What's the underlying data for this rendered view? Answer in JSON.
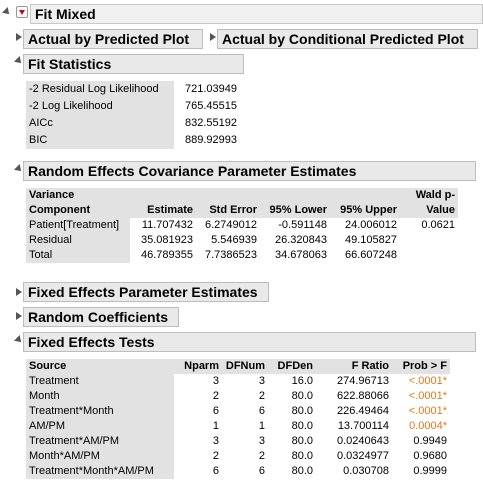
{
  "title": "Fit Mixed",
  "actual_by_predicted": "Actual by Predicted Plot",
  "actual_by_conditional": "Actual by Conditional Predicted Plot",
  "fit_statistics": {
    "title": "Fit Statistics",
    "rows": [
      {
        "label": "-2 Residual Log Likelihood",
        "value": "721.03949"
      },
      {
        "label": "-2 Log Likelihood",
        "value": "765.45515"
      },
      {
        "label": "AICc",
        "value": "832.55192"
      },
      {
        "label": "BIC",
        "value": "889.92993"
      }
    ]
  },
  "random_effects": {
    "title": "Random Effects Covariance Parameter Estimates",
    "headers": {
      "component_line1": "Variance",
      "component_line2": "Component",
      "estimate": "Estimate",
      "std_error": "Std Error",
      "lower": "95% Lower",
      "upper": "95% Upper",
      "wald_line1": "Wald p-",
      "wald_line2": "Value"
    },
    "rows": [
      {
        "component": "Patient[Treatment]",
        "estimate": "11.707432",
        "std_error": "6.2749012",
        "lower": "-0.591148",
        "upper": "24.006012",
        "wald": "0.0621"
      },
      {
        "component": "Residual",
        "estimate": "35.081923",
        "std_error": "5.546939",
        "lower": "26.320843",
        "upper": "49.105827",
        "wald": ""
      },
      {
        "component": "Total",
        "estimate": "46.789355",
        "std_error": "7.7386523",
        "lower": "34.678063",
        "upper": "66.607248",
        "wald": ""
      }
    ]
  },
  "fixed_effects_params": "Fixed Effects Parameter Estimates",
  "random_coefficients": "Random Coefficients",
  "fixed_effects_tests": {
    "title": "Fixed Effects Tests",
    "headers": {
      "source": "Source",
      "nparm": "Nparm",
      "dfnum": "DFNum",
      "dfden": "DFDen",
      "fratio": "F Ratio",
      "prob": "Prob > F"
    },
    "rows": [
      {
        "source": "Treatment",
        "nparm": "3",
        "dfnum": "3",
        "dfden": "16.0",
        "fratio": "274.96713",
        "prob": "<.0001*",
        "sig": true
      },
      {
        "source": "Month",
        "nparm": "2",
        "dfnum": "2",
        "dfden": "80.0",
        "fratio": "622.88066",
        "prob": "<.0001*",
        "sig": true
      },
      {
        "source": "Treatment*Month",
        "nparm": "6",
        "dfnum": "6",
        "dfden": "80.0",
        "fratio": "226.49464",
        "prob": "<.0001*",
        "sig": true
      },
      {
        "source": "AM/PM",
        "nparm": "1",
        "dfnum": "1",
        "dfden": "80.0",
        "fratio": "13.700114",
        "prob": "0.0004*",
        "sig": true
      },
      {
        "source": "Treatment*AM/PM",
        "nparm": "3",
        "dfnum": "3",
        "dfden": "80.0",
        "fratio": "0.0240643",
        "prob": "0.9949",
        "sig": false
      },
      {
        "source": "Month*AM/PM",
        "nparm": "2",
        "dfnum": "2",
        "dfden": "80.0",
        "fratio": "0.0324977",
        "prob": "0.9680",
        "sig": false
      },
      {
        "source": "Treatment*Month*AM/PM",
        "nparm": "6",
        "dfnum": "6",
        "dfden": "80.0",
        "fratio": "0.030708",
        "prob": "0.9999",
        "sig": false
      }
    ]
  },
  "colors": {
    "significant": "#e07b1a",
    "header_bg": "#e9e9e9",
    "table_gray": "#e2e2e2",
    "menu_arrow": "#d0021b"
  }
}
